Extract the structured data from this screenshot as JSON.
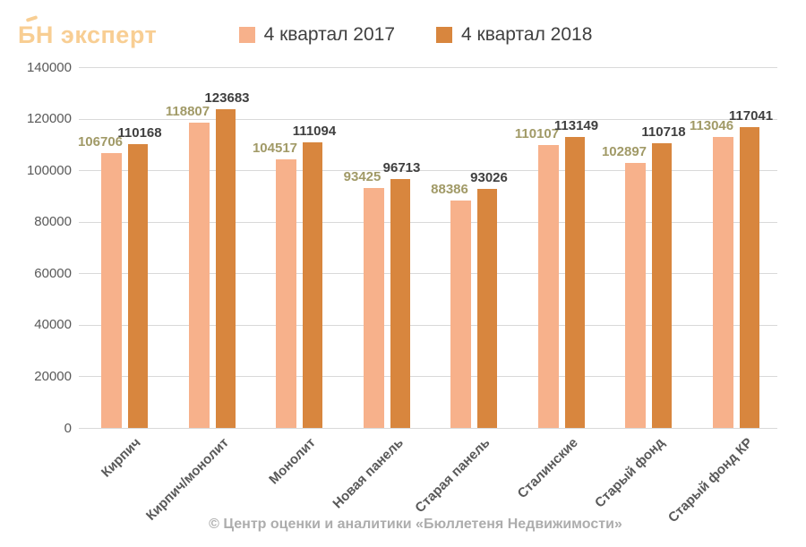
{
  "logo": {
    "text": "БН эксперт",
    "color": "#F8CE93"
  },
  "legend": [
    {
      "label": "4 квартал 2017",
      "color": "#F7B18B"
    },
    {
      "label": "4 квартал 2018",
      "color": "#D8863E"
    }
  ],
  "footer": {
    "text": "© Центр оценки и аналитики «Бюллетеня Недвижимости»"
  },
  "chart_data": {
    "type": "bar",
    "title": "",
    "xlabel": "",
    "ylabel": "",
    "categories": [
      "Кирпич",
      "Кирпич/монолит",
      "Монолит",
      "Новая панель",
      "Старая панель",
      "Сталинские",
      "Старый фонд",
      "Старый фонд КР"
    ],
    "series": [
      {
        "name": "4 квартал 2017",
        "color": "#F7B18B",
        "label_color": "#A19A67",
        "values": [
          106706,
          118807,
          104517,
          93425,
          88386,
          110107,
          102897,
          113046
        ]
      },
      {
        "name": "4 квартал 2018",
        "color": "#D8863E",
        "label_color": "#3F3F3F",
        "values": [
          110168,
          123683,
          111094,
          96713,
          93026,
          113149,
          110718,
          117041
        ]
      }
    ],
    "ylim": [
      0,
      140000
    ],
    "ytick_step": 20000,
    "yticks": [
      0,
      20000,
      40000,
      60000,
      80000,
      100000,
      120000,
      140000
    ],
    "grid": true,
    "legend_position": "top",
    "value_labels": true,
    "grid_color": "#D9D9D9",
    "axis_text_color": "#595959"
  }
}
